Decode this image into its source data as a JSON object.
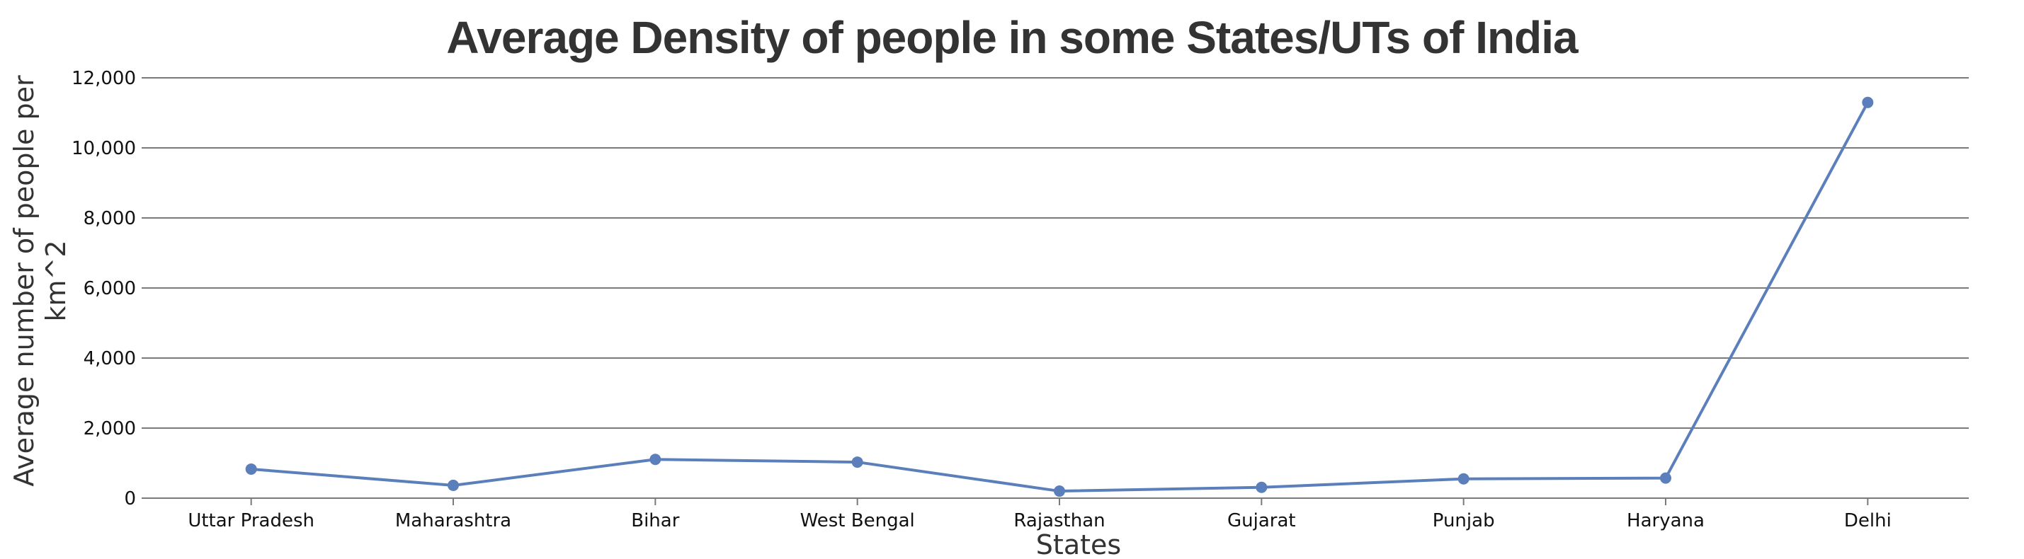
{
  "chart_data": {
    "type": "line",
    "title": "Average Density of people in some States/UTs of India",
    "xlabel": "States",
    "ylabel": "Average number of people per km^2",
    "categories": [
      "Uttar Pradesh",
      "Maharashtra",
      "Bihar",
      "West Bengal",
      "Rajasthan",
      "Gujarat",
      "Punjab",
      "Haryana",
      "Delhi"
    ],
    "series": [
      {
        "values": [
          829,
          365,
          1106,
          1029,
          201,
          308,
          551,
          573,
          11297
        ]
      }
    ],
    "ylim": [
      0,
      12000
    ],
    "yticks": [
      "0",
      "2,000",
      "4,000",
      "6,000",
      "8,000",
      "10,000",
      "12,000"
    ],
    "grid": true,
    "color": "#5b7fbb"
  }
}
